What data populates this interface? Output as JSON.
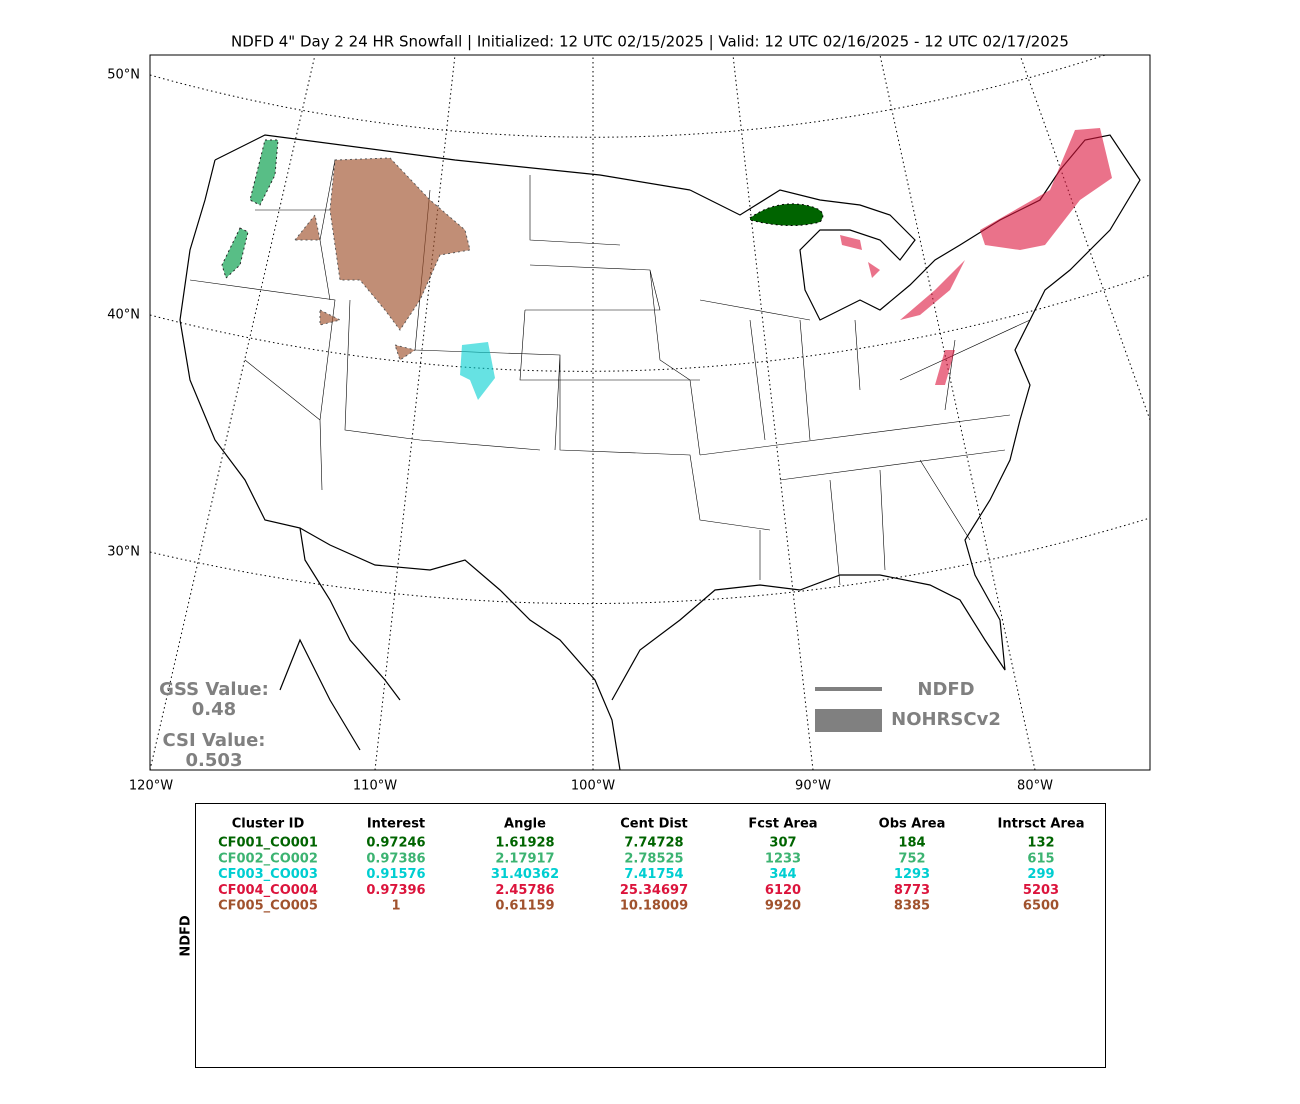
{
  "title": "NDFD 4\" Day 2 24 HR Snowfall | Initialized: 12 UTC 02/15/2025 | Valid: 12 UTC 02/16/2025 - 12 UTC 02/17/2025",
  "map": {
    "lat_labels": [
      "50°N",
      "40°N",
      "30°N"
    ],
    "lon_labels": [
      "120°W",
      "110°W",
      "100°W",
      "90°W",
      "80°W"
    ],
    "gss_label": "GSS Value:",
    "gss_value": "0.48",
    "csi_label": "CSI Value:",
    "csi_value": "0.503",
    "legend": [
      "NDFD",
      "NOHRSCv2"
    ]
  },
  "table": {
    "side_label": "NDFD",
    "header": [
      "Cluster ID",
      "Interest",
      "Angle",
      "Cent Dist",
      "Fcst Area",
      "Obs Area",
      "Intrsct Area"
    ],
    "row_colors": [
      "#006400",
      "#3cb371",
      "#00ced1",
      "#dc143c",
      "#a0522d"
    ],
    "rows": [
      [
        "CF001_CO001",
        "0.97246",
        "1.61928",
        "7.74728",
        "307",
        "184",
        "132"
      ],
      [
        "CF002_CO002",
        "0.97386",
        "2.17917",
        "2.78525",
        "1233",
        "752",
        "615"
      ],
      [
        "CF003_CO003",
        "0.91576",
        "31.40362",
        "7.41754",
        "344",
        "1293",
        "299"
      ],
      [
        "CF004_CO004",
        "0.97396",
        "2.45786",
        "25.34697",
        "6120",
        "8773",
        "5203"
      ],
      [
        "CF005_CO005",
        "1",
        "0.61159",
        "10.18009",
        "9920",
        "8385",
        "6500"
      ]
    ]
  }
}
